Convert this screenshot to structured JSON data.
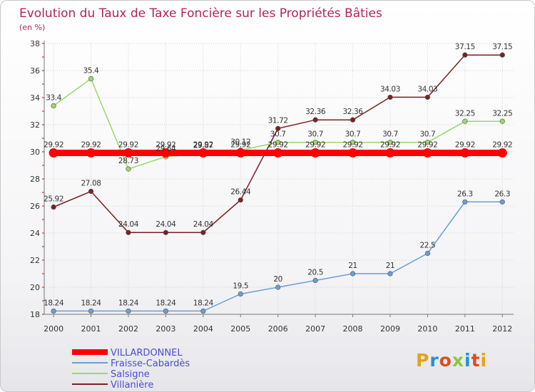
{
  "title": "Evolution du Taux de Taxe Foncière sur les Propriétés Bâties",
  "subtitle": "(en %)",
  "logo": [
    "P",
    "r",
    "o",
    "x",
    "i",
    "t",
    "i"
  ],
  "logo_colors": [
    "#e6a21c",
    "#2a8fd4",
    "#d94f1e",
    "#8cc63f",
    "#2a8fd4",
    "#d94f1e",
    "#e6a21c"
  ],
  "chart_data": {
    "type": "line",
    "title": "Evolution du Taux de Taxe Foncière sur les Propriétés Bâties",
    "ylabel": "(en %)",
    "xlabel": "",
    "ylim": [
      18,
      38
    ],
    "yticks": [
      "18",
      "20",
      "22",
      "24",
      "26",
      "28",
      "30",
      "32",
      "34",
      "36",
      "38"
    ],
    "categories": [
      "2000",
      "2001",
      "2002",
      "2003",
      "2004",
      "2005",
      "2006",
      "2007",
      "2008",
      "2009",
      "2010",
      "2011",
      "2012"
    ],
    "series": [
      {
        "name": "Villanière",
        "color": "#7a2020",
        "values": [
          25.92,
          27.08,
          24.04,
          24.04,
          24.04,
          26.44,
          31.72,
          32.36,
          32.36,
          34.03,
          34.03,
          37.15,
          37.15
        ],
        "labels": [
          "25.92",
          "27.08",
          "24.04",
          "24.04",
          "24.04",
          "26.44",
          "31.72",
          "32.36",
          "32.36",
          "34.03",
          "34.03",
          "37.15",
          "37.15"
        ]
      },
      {
        "name": "Salsigne",
        "color": "#9ad86a",
        "values": [
          33.4,
          35.4,
          28.73,
          29.64,
          29.87,
          30.12,
          30.7,
          30.7,
          30.7,
          30.7,
          30.7,
          32.25,
          32.25
        ],
        "labels": [
          "33.4",
          "35.4",
          "28.73",
          "29.64",
          "29.87",
          "30.12",
          "30.7",
          "30.7",
          "30.7",
          "30.7",
          "30.7",
          "32.25",
          "32.25"
        ]
      },
      {
        "name": "Fraisse-Cabardès",
        "color": "#6a9fd4",
        "values": [
          18.24,
          18.24,
          18.24,
          18.24,
          18.24,
          19.5,
          20,
          20.5,
          21,
          21,
          22.5,
          26.3,
          26.3
        ],
        "labels": [
          "18.24",
          "18.24",
          "18.24",
          "18.24",
          "18.24",
          "19.5",
          "20",
          "20.5",
          "21",
          "21",
          "22.5",
          "26.3",
          "26.3"
        ]
      },
      {
        "name": "VILLARDONNEL",
        "color": "#ff0000",
        "values": [
          29.92,
          29.92,
          29.92,
          29.92,
          29.92,
          29.92,
          29.92,
          29.92,
          29.92,
          29.92,
          29.92,
          29.92,
          29.92
        ],
        "labels": [
          "29.92",
          "29.92",
          "29.92",
          "29.92",
          "29.92",
          "29.92",
          "29.92",
          "29.92",
          "29.92",
          "29.92",
          "29.92",
          "29.92",
          "29.92"
        ]
      }
    ],
    "legend": [
      "VILLARDONNEL",
      "Fraisse-Cabardès",
      "Salsigne",
      "Villanière"
    ],
    "legend_colors": [
      "#ff0000",
      "#6a9fd4",
      "#9ad86a",
      "#7a2020"
    ],
    "legend_position": "bottom-left",
    "grid": true
  }
}
